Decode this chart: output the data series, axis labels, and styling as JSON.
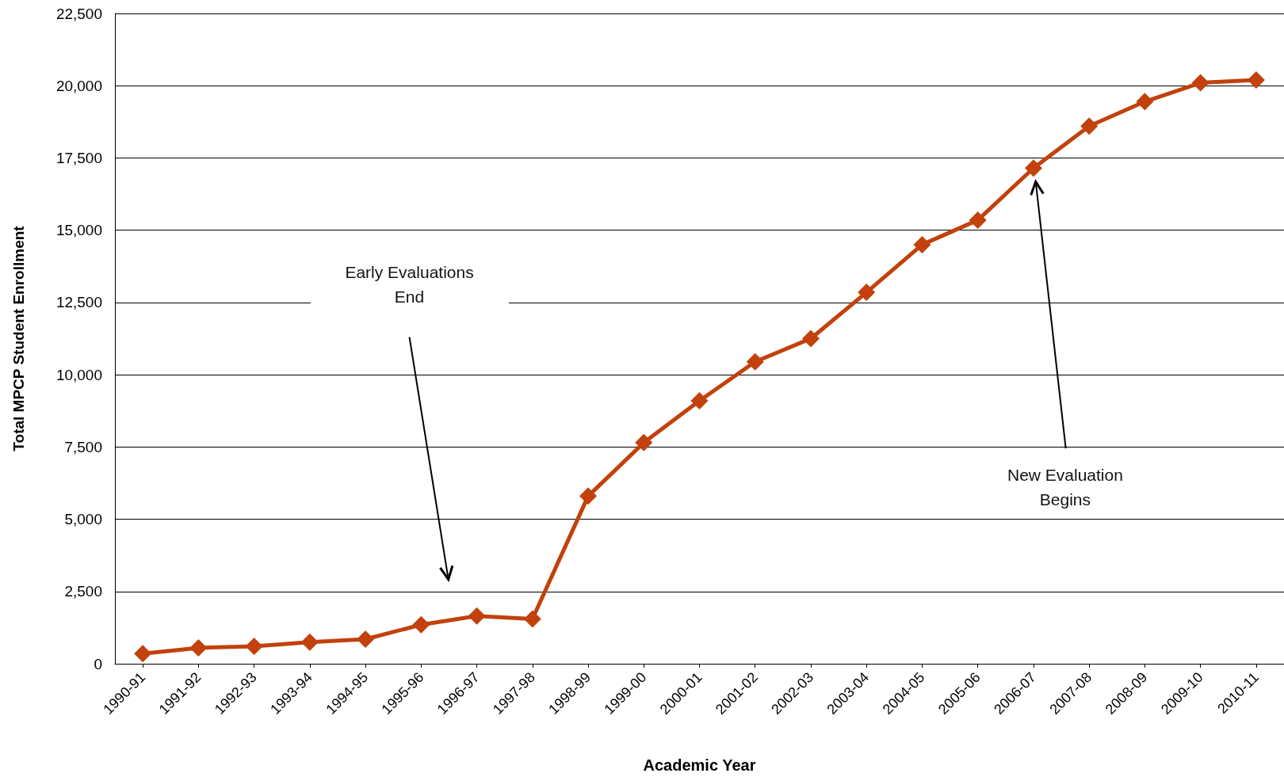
{
  "chart_data": {
    "type": "line",
    "xlabel": "Academic Year",
    "ylabel": "Total MPCP Student Enrollment",
    "categories": [
      "1990-91",
      "1991-92",
      "1992-93",
      "1993-94",
      "1994-95",
      "1995-96",
      "1996-97",
      "1997-98",
      "1998-99",
      "1999-00",
      "2000-01",
      "2001-02",
      "2002-03",
      "2003-04",
      "2004-05",
      "2005-06",
      "2006-07",
      "2007-08",
      "2008-09",
      "2009-10",
      "2010-11"
    ],
    "series": [
      {
        "color": "#c2410c",
        "values": [
          350,
          550,
          600,
          750,
          850,
          1350,
          1650,
          1550,
          5800,
          7650,
          9100,
          10450,
          11250,
          12850,
          14500,
          15350,
          17150,
          18600,
          19450,
          20100,
          20200
        ]
      }
    ],
    "ylim": [
      0,
      22500
    ],
    "yticks": [
      {
        "value": 0,
        "label": "0"
      },
      {
        "value": 2500,
        "label": "2,500"
      },
      {
        "value": 5000,
        "label": "5,000"
      },
      {
        "value": 7500,
        "label": "7,500"
      },
      {
        "value": 10000,
        "label": "10,000"
      },
      {
        "value": 12500,
        "label": "12,500"
      },
      {
        "value": 15000,
        "label": "15,000"
      },
      {
        "value": 17500,
        "label": "17,500"
      },
      {
        "value": 20000,
        "label": "20,000"
      },
      {
        "value": 22500,
        "label": "22,500"
      }
    ],
    "grid": "y",
    "marker": "diamond",
    "line_style": "solid",
    "annotations": [
      "Early Evaluations End",
      "New Evaluation Begins"
    ]
  }
}
